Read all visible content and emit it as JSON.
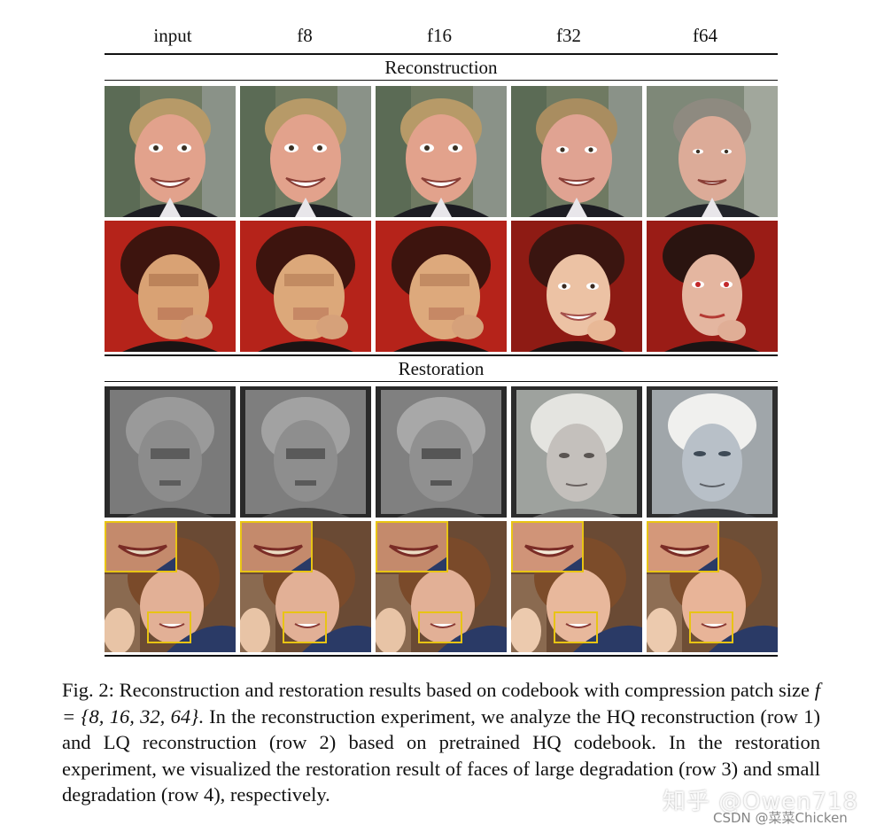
{
  "columns": [
    "input",
    "f8",
    "f16",
    "f32",
    "f64"
  ],
  "sections": {
    "reconstruction": "Reconstruction",
    "restoration": "Restoration"
  },
  "caption": {
    "lead": "Fig. 2: Reconstruction and restoration results based on codebook with compression patch size ",
    "math": "f = {8, 16, 32, 64}",
    "tail": ". In the reconstruction experiment, we analyze the HQ reconstruction (row 1) and LQ reconstruction (row 2) based on pretrained HQ codebook. In the restoration experiment, we visualized the restoration result of faces of large degradation (row 3) and small degradation (row 4), respectively."
  },
  "watermark": {
    "text": "知乎 @Owen718",
    "sub": "CSDN @菜菜Chicken"
  },
  "colors": {
    "inset_border": "#e8c414",
    "rule": "#111111"
  }
}
